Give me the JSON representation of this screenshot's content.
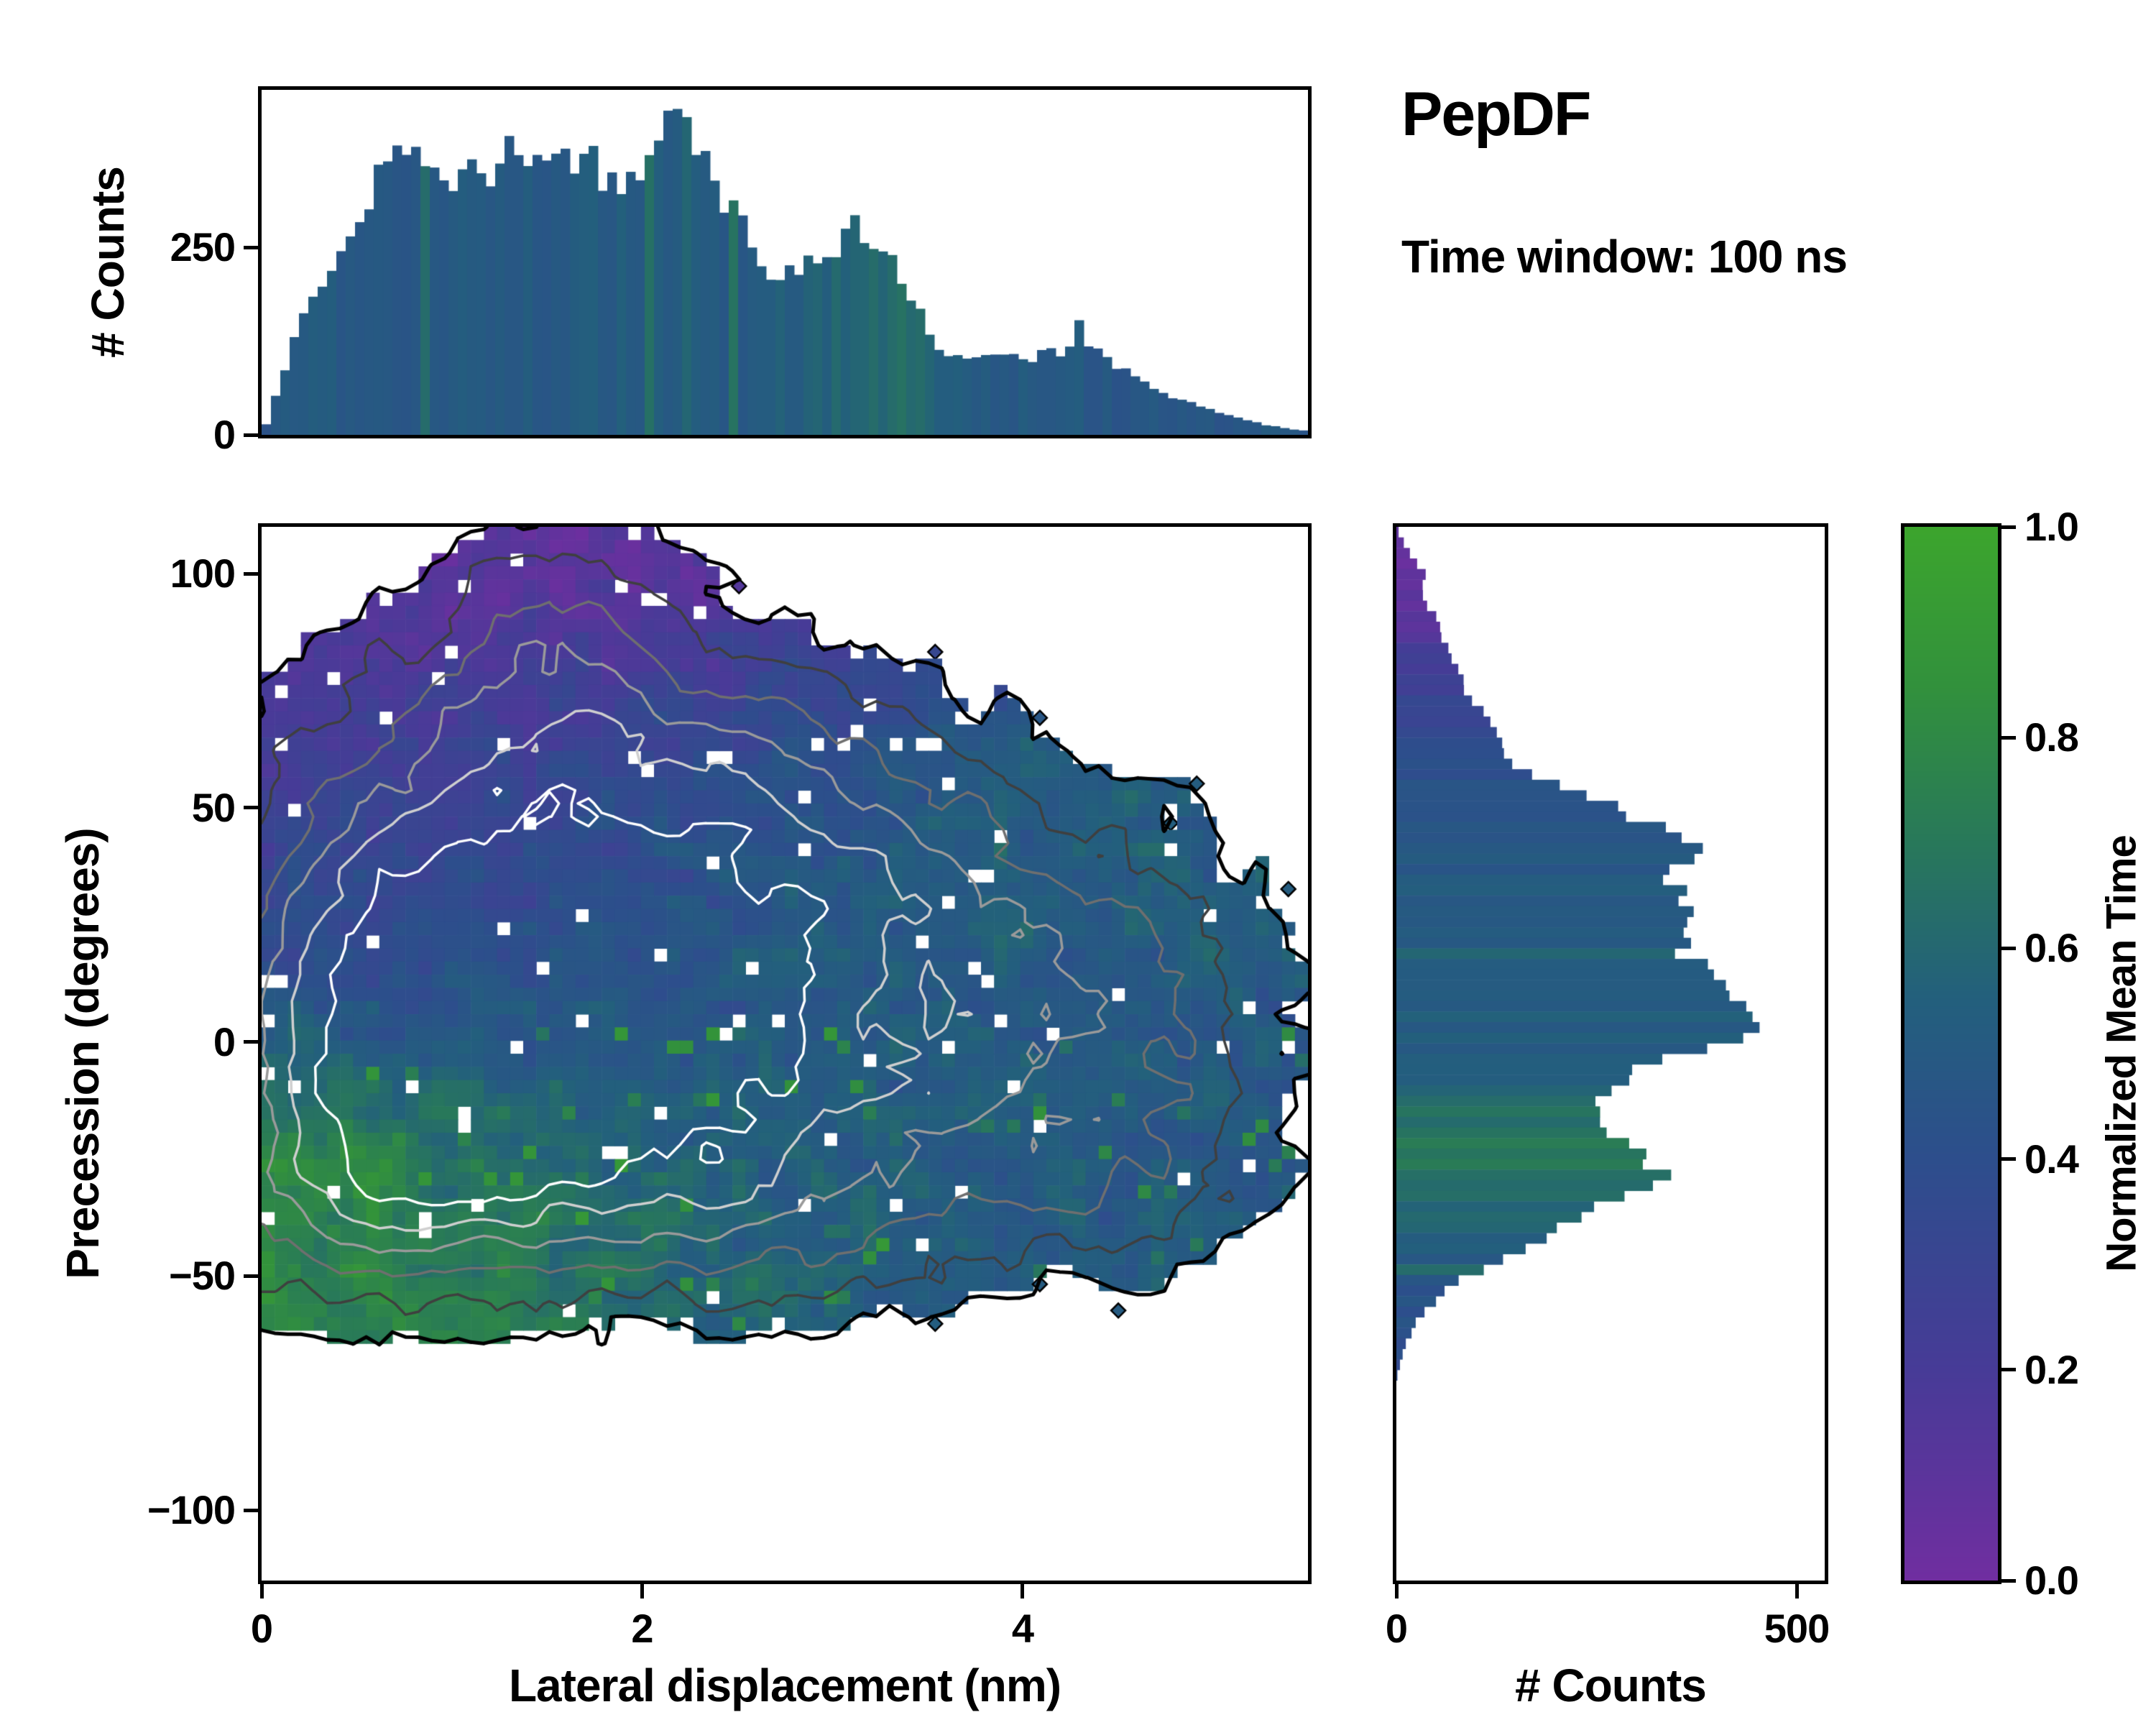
{
  "header": {
    "title": "PepDF",
    "subtitle": "Time window: 100 ns"
  },
  "colormap": {
    "label": "Normalized Mean Time",
    "ticks": [
      0,
      0.2,
      0.4,
      0.6,
      0.8,
      1
    ],
    "stops": [
      [
        0,
        "#702ea0"
      ],
      [
        0.2,
        "#473b97"
      ],
      [
        0.4,
        "#2d4e8c"
      ],
      [
        0.55,
        "#235f7d"
      ],
      [
        0.7,
        "#28785a"
      ],
      [
        0.85,
        "#32913c"
      ],
      [
        1,
        "#3ca52d"
      ]
    ]
  },
  "frame_color": "#000000",
  "chart_data": [
    {
      "id": "joint-density-map",
      "type": "heatmap",
      "xlabel": "Lateral displacement (nm)",
      "ylabel": "Precession (degrees)",
      "value_label": "Normalized Mean Time",
      "xlim": [
        0,
        5.5
      ],
      "ylim": [
        -115,
        110
      ],
      "xticks": [
        0,
        2,
        4
      ],
      "yticks": [
        -100,
        -50,
        0,
        50,
        100
      ],
      "grid_cells": [
        80,
        80
      ],
      "occupancy_threshold": 0.18,
      "density_blobs": [
        [
          1.3,
          25,
          0.85,
          26,
          1.0
        ],
        [
          2.2,
          22,
          0.9,
          28,
          0.9
        ],
        [
          0.6,
          10,
          0.55,
          30,
          0.8
        ],
        [
          1.6,
          88,
          0.45,
          18,
          0.6
        ],
        [
          1.2,
          65,
          0.6,
          18,
          0.45
        ],
        [
          2.4,
          62,
          0.7,
          16,
          0.45
        ],
        [
          3.1,
          40,
          0.7,
          20,
          0.5
        ],
        [
          3.9,
          25,
          0.75,
          20,
          0.5
        ],
        [
          4.6,
          5,
          0.55,
          20,
          0.4
        ],
        [
          3.6,
          -10,
          0.9,
          20,
          0.55
        ],
        [
          4.5,
          -30,
          0.55,
          14,
          0.4
        ],
        [
          0.8,
          -25,
          0.65,
          18,
          0.6
        ],
        [
          1.7,
          -28,
          0.8,
          16,
          0.5
        ],
        [
          2.7,
          -42,
          0.8,
          13,
          0.4
        ],
        [
          1.3,
          -2,
          0.8,
          20,
          0.6
        ],
        [
          2.5,
          -15,
          0.9,
          20,
          0.5
        ],
        [
          0.4,
          -35,
          0.5,
          15,
          0.4
        ]
      ],
      "mean_time_regions": [
        [
          1.5,
          92,
          0.08,
          1.3,
          22
        ],
        [
          0.9,
          60,
          0.25,
          1.0,
          18
        ],
        [
          2.2,
          60,
          0.3,
          1.0,
          18
        ],
        [
          3.2,
          55,
          0.55,
          1.0,
          18
        ],
        [
          0.8,
          30,
          0.32,
          0.9,
          20
        ],
        [
          2.0,
          30,
          0.42,
          1.0,
          22
        ],
        [
          3.3,
          30,
          0.58,
          1.0,
          20
        ],
        [
          4.3,
          20,
          0.52,
          0.9,
          22
        ],
        [
          1.2,
          5,
          0.45,
          0.9,
          18
        ],
        [
          2.6,
          0,
          0.5,
          1.0,
          20
        ],
        [
          0.5,
          -22,
          0.85,
          0.6,
          16
        ],
        [
          1.1,
          -40,
          0.75,
          0.7,
          14
        ],
        [
          1.8,
          -20,
          0.62,
          0.8,
          16
        ],
        [
          2.8,
          -30,
          0.55,
          0.9,
          18
        ],
        [
          3.8,
          -20,
          0.5,
          1.0,
          18
        ],
        [
          4.7,
          -15,
          0.5,
          0.8,
          18
        ],
        [
          4.0,
          0,
          0.48,
          0.9,
          18
        ]
      ],
      "contour_levels": [
        {
          "level": 0.18,
          "color": "#000000",
          "width": 5
        },
        {
          "level": 0.45,
          "color": "#3f3f3f",
          "width": 3.5
        },
        {
          "level": 0.75,
          "color": "#6f6f6f",
          "width": 3.5
        },
        {
          "level": 1.05,
          "color": "#9a9a9a",
          "width": 3.5
        },
        {
          "level": 1.35,
          "color": "#cfcfcf",
          "width": 3.5
        },
        {
          "level": 1.65,
          "color": "#ffffff",
          "width": 3.5
        }
      ],
      "noise": {
        "seed": 11,
        "edge_amp": 0.22,
        "color_amp": 0.16,
        "scale": 0.35
      },
      "speckle_fraction": 0.025,
      "outlier_fraction": 0.035,
      "green_fleck_fraction": 0.05
    },
    {
      "id": "lateral-displacement-histogram",
      "type": "bar",
      "orientation": "vertical",
      "ylabel": "# Counts",
      "xlim": [
        0,
        5.5
      ],
      "ylim": [
        0,
        460
      ],
      "yticks": [
        0,
        250
      ],
      "bins": 112,
      "count_envelope": [
        [
          0,
          0
        ],
        [
          0.05,
          30
        ],
        [
          0.1,
          70
        ],
        [
          0.15,
          110
        ],
        [
          0.2,
          150
        ],
        [
          0.3,
          200
        ],
        [
          0.4,
          240
        ],
        [
          0.5,
          260
        ],
        [
          0.55,
          300
        ],
        [
          0.6,
          330
        ],
        [
          0.65,
          360
        ],
        [
          0.7,
          385
        ],
        [
          0.75,
          400
        ],
        [
          0.8,
          380
        ],
        [
          0.9,
          350
        ],
        [
          1.0,
          340
        ],
        [
          1.05,
          360
        ],
        [
          1.1,
          345
        ],
        [
          1.2,
          330
        ],
        [
          1.25,
          385
        ],
        [
          1.3,
          400
        ],
        [
          1.35,
          380
        ],
        [
          1.4,
          370
        ],
        [
          1.5,
          360
        ],
        [
          1.55,
          380
        ],
        [
          1.6,
          355
        ],
        [
          1.7,
          350
        ],
        [
          1.75,
          365
        ],
        [
          1.8,
          330
        ],
        [
          1.9,
          340
        ],
        [
          1.95,
          355
        ],
        [
          2.0,
          340
        ],
        [
          2.05,
          370
        ],
        [
          2.1,
          400
        ],
        [
          2.15,
          420
        ],
        [
          2.2,
          410
        ],
        [
          2.25,
          400
        ],
        [
          2.3,
          380
        ],
        [
          2.35,
          340
        ],
        [
          2.4,
          310
        ],
        [
          2.5,
          290
        ],
        [
          2.55,
          265
        ],
        [
          2.6,
          240
        ],
        [
          2.7,
          215
        ],
        [
          2.8,
          210
        ],
        [
          2.9,
          230
        ],
        [
          2.95,
          225
        ],
        [
          3.0,
          240
        ],
        [
          3.05,
          260
        ],
        [
          3.1,
          285
        ],
        [
          3.15,
          270
        ],
        [
          3.2,
          250
        ],
        [
          3.3,
          235
        ],
        [
          3.4,
          190
        ],
        [
          3.5,
          150
        ],
        [
          3.55,
          120
        ],
        [
          3.6,
          105
        ],
        [
          3.7,
          100
        ],
        [
          3.8,
          110
        ],
        [
          3.9,
          105
        ],
        [
          4.0,
          100
        ],
        [
          4.1,
          108
        ],
        [
          4.2,
          112
        ],
        [
          4.25,
          120
        ],
        [
          4.3,
          145
        ],
        [
          4.35,
          125
        ],
        [
          4.4,
          110
        ],
        [
          4.5,
          90
        ],
        [
          4.6,
          75
        ],
        [
          4.7,
          60
        ],
        [
          4.8,
          50
        ],
        [
          4.9,
          40
        ],
        [
          5.0,
          32
        ],
        [
          5.1,
          25
        ],
        [
          5.2,
          18
        ],
        [
          5.3,
          12
        ],
        [
          5.4,
          8
        ],
        [
          5.5,
          5
        ]
      ],
      "meantime_envelope": [
        [
          0,
          0.48
        ],
        [
          0.5,
          0.5
        ],
        [
          1.0,
          0.5
        ],
        [
          1.5,
          0.5
        ],
        [
          2.0,
          0.52
        ],
        [
          2.5,
          0.52
        ],
        [
          2.9,
          0.55
        ],
        [
          3.1,
          0.6
        ],
        [
          3.3,
          0.63
        ],
        [
          3.5,
          0.58
        ],
        [
          3.8,
          0.52
        ],
        [
          4.2,
          0.5
        ],
        [
          4.6,
          0.48
        ],
        [
          5.0,
          0.47
        ],
        [
          5.5,
          0.5
        ]
      ],
      "noise": {
        "seed": 5,
        "amp": 0.07,
        "color_amp": 0.05,
        "green_fraction": 0.05
      }
    },
    {
      "id": "precession-histogram",
      "type": "bar",
      "orientation": "horizontal",
      "xlabel": "# Counts",
      "ylim": [
        -115,
        110
      ],
      "xlim": [
        0,
        535
      ],
      "xticks": [
        0,
        500
      ],
      "bins": 100,
      "count_envelope": [
        [
          -115,
          0
        ],
        [
          -72,
          0
        ],
        [
          -68,
          6
        ],
        [
          -64,
          12
        ],
        [
          -60,
          25
        ],
        [
          -56,
          45
        ],
        [
          -52,
          70
        ],
        [
          -48,
          110
        ],
        [
          -44,
          160
        ],
        [
          -40,
          200
        ],
        [
          -36,
          250
        ],
        [
          -32,
          290
        ],
        [
          -28,
          330
        ],
        [
          -24,
          300
        ],
        [
          -20,
          260
        ],
        [
          -16,
          235
        ],
        [
          -12,
          260
        ],
        [
          -8,
          290
        ],
        [
          -4,
          330
        ],
        [
          0,
          400
        ],
        [
          4,
          470
        ],
        [
          8,
          440
        ],
        [
          12,
          420
        ],
        [
          16,
          390
        ],
        [
          20,
          360
        ],
        [
          24,
          370
        ],
        [
          28,
          390
        ],
        [
          32,
          360
        ],
        [
          36,
          330
        ],
        [
          40,
          370
        ],
        [
          44,
          360
        ],
        [
          48,
          300
        ],
        [
          52,
          260
        ],
        [
          56,
          170
        ],
        [
          60,
          150
        ],
        [
          64,
          130
        ],
        [
          68,
          115
        ],
        [
          72,
          100
        ],
        [
          76,
          85
        ],
        [
          80,
          75
        ],
        [
          84,
          65
        ],
        [
          88,
          55
        ],
        [
          92,
          45
        ],
        [
          96,
          30
        ],
        [
          100,
          35
        ],
        [
          104,
          18
        ],
        [
          108,
          5
        ],
        [
          110,
          0
        ]
      ],
      "meantime_envelope": [
        [
          -115,
          0.4
        ],
        [
          -70,
          0.38
        ],
        [
          -60,
          0.42
        ],
        [
          -50,
          0.45
        ],
        [
          -40,
          0.55
        ],
        [
          -32,
          0.62
        ],
        [
          -27,
          0.72
        ],
        [
          -22,
          0.7
        ],
        [
          -16,
          0.66
        ],
        [
          -12,
          0.6
        ],
        [
          -6,
          0.55
        ],
        [
          0,
          0.52
        ],
        [
          10,
          0.52
        ],
        [
          20,
          0.5
        ],
        [
          30,
          0.5
        ],
        [
          40,
          0.48
        ],
        [
          50,
          0.45
        ],
        [
          58,
          0.4
        ],
        [
          66,
          0.33
        ],
        [
          74,
          0.28
        ],
        [
          82,
          0.22
        ],
        [
          90,
          0.12
        ],
        [
          98,
          0.08
        ],
        [
          106,
          0.05
        ],
        [
          110,
          0.05
        ]
      ],
      "noise": {
        "seed": 9,
        "amp": 0.06,
        "color_amp": 0.05,
        "green_fraction": 0.04
      }
    }
  ]
}
